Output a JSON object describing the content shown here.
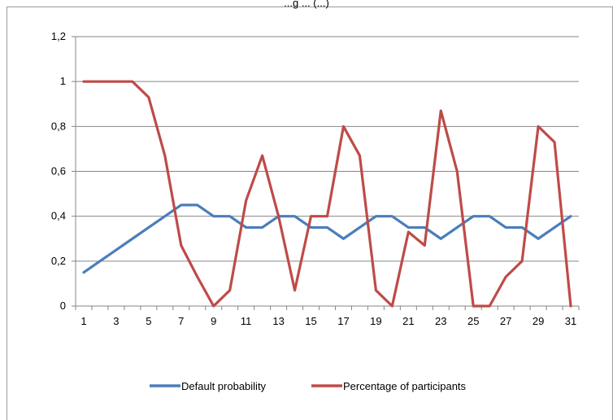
{
  "chart_data": {
    "type": "line",
    "title": "",
    "partial_title": "...g ... (...)",
    "x": [
      1,
      2,
      3,
      4,
      5,
      6,
      7,
      8,
      9,
      10,
      11,
      12,
      13,
      14,
      15,
      16,
      17,
      18,
      19,
      20,
      21,
      22,
      23,
      24,
      25,
      26,
      27,
      28,
      29,
      30,
      31
    ],
    "x_tick_labels": [
      "1",
      "3",
      "5",
      "7",
      "9",
      "11",
      "13",
      "15",
      "17",
      "19",
      "21",
      "23",
      "25",
      "27",
      "29",
      "31"
    ],
    "y_tick_labels": [
      "0",
      "0,2",
      "0,4",
      "0,6",
      "0,8",
      "1",
      "1,2"
    ],
    "ylim": [
      0,
      1.2
    ],
    "grid": true,
    "legend_position": "bottom",
    "series": [
      {
        "name": "Default probability",
        "color": "#4a7ebb",
        "values": [
          0.15,
          0.2,
          0.25,
          0.3,
          0.35,
          0.4,
          0.45,
          0.45,
          0.4,
          0.4,
          0.35,
          0.35,
          0.4,
          0.4,
          0.35,
          0.35,
          0.3,
          0.35,
          0.4,
          0.4,
          0.35,
          0.35,
          0.3,
          0.35,
          0.4,
          0.4,
          0.35,
          0.35,
          0.3,
          0.35,
          0.4
        ]
      },
      {
        "name": "Percentage of participants",
        "color": "#be4b48",
        "values": [
          1,
          1,
          1,
          1,
          0.93,
          0.67,
          0.27,
          0.13,
          0,
          0.07,
          0.47,
          0.67,
          0.4,
          0.07,
          0.4,
          0.4,
          0.8,
          0.67,
          0.07,
          0,
          0.33,
          0.27,
          0.87,
          0.6,
          0,
          0,
          0.13,
          0.2,
          0.8,
          0.73,
          0
        ]
      }
    ]
  }
}
